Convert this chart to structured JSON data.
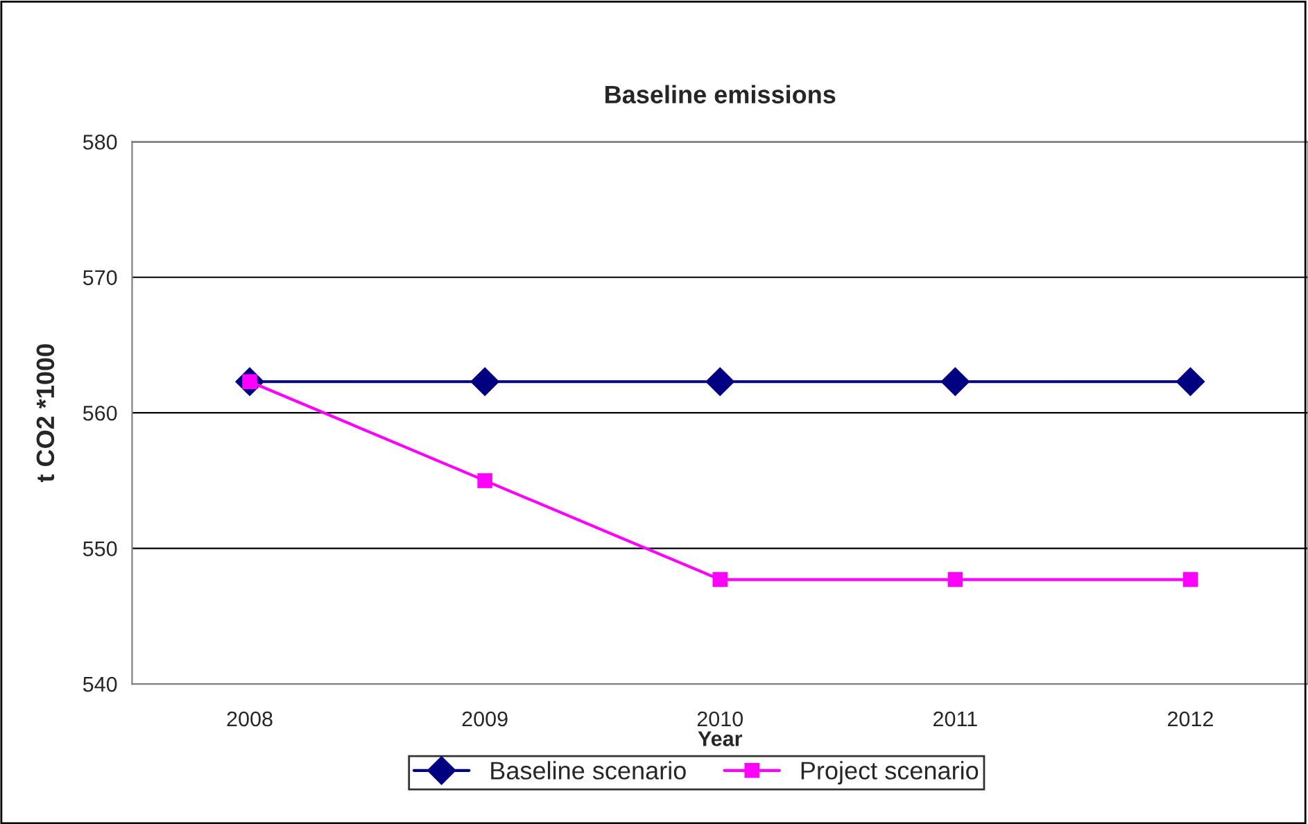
{
  "chart_data": {
    "type": "line",
    "title": "Baseline emissions",
    "xlabel": "Year",
    "ylabel": "t CO2 *1000",
    "categories": [
      "2008",
      "2009",
      "2010",
      "2011",
      "2012"
    ],
    "series": [
      {
        "name": "Baseline scenario",
        "color": "#000080",
        "marker": "diamond",
        "values": [
          562.3,
          562.3,
          562.3,
          562.3,
          562.3
        ]
      },
      {
        "name": "Project scenario",
        "color": "#ff00ff",
        "marker": "square",
        "values": [
          562.3,
          555.0,
          547.7,
          547.7,
          547.7
        ]
      }
    ],
    "ylim": [
      540,
      580
    ],
    "yticks": [
      540,
      550,
      560,
      570,
      580
    ],
    "grid": "y",
    "legend": "bottom",
    "line_style": "solid"
  }
}
